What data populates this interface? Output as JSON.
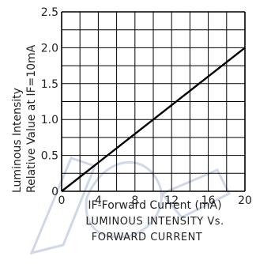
{
  "chart_data": {
    "type": "line",
    "xlabel": "IF-Forward Current (mA)",
    "ylabel_line1": "Luminous Intensity",
    "ylabel_line2": "Relative Value at IF=10mA",
    "caption_line1": "LUMINOUS INTENSITY Vs.",
    "caption_line2": "FORWARD CURRENT",
    "xlim": [
      0,
      20
    ],
    "ylim": [
      0,
      2.5
    ],
    "x_ticks": [
      "0",
      "4",
      "8",
      "12",
      "16",
      "20"
    ],
    "y_ticks": [
      "0",
      "0.5",
      "1.0",
      "1.5",
      "2.0",
      "2.5"
    ],
    "grid": true,
    "series": [
      {
        "x": [
          0,
          20
        ],
        "y": [
          0,
          2.0
        ]
      }
    ],
    "colors": {
      "line": "#000000",
      "grid": "#000000",
      "text": "#222222",
      "watermark": "#cfd8e6"
    }
  }
}
